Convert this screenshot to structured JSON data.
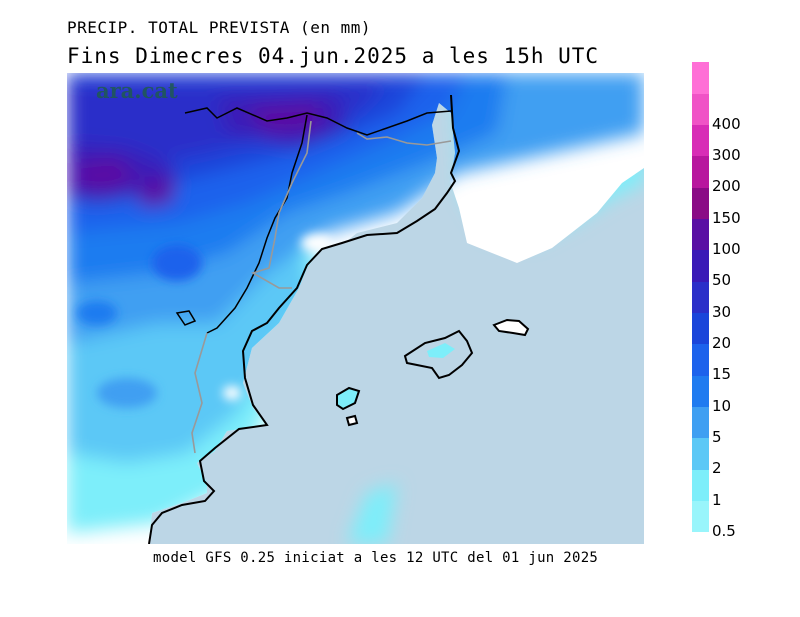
{
  "header": {
    "title_line1": "PRECIP. TOTAL PREVISTA (en mm)",
    "title_line2": "Fins Dimecres  04.jun.2025  a les  15h  UTC"
  },
  "watermark": "ara.cat",
  "footer": "model GFS 0.25 iniciat a les 12 UTC del 01 jun 2025",
  "legend": {
    "items": [
      {
        "label": "0.5",
        "color": "#99f5fb"
      },
      {
        "label": "1",
        "color": "#7deefa"
      },
      {
        "label": "2",
        "color": "#5cc8f6"
      },
      {
        "label": "5",
        "color": "#3f9ff2"
      },
      {
        "label": "10",
        "color": "#1f7bf0"
      },
      {
        "label": "15",
        "color": "#1c62ec"
      },
      {
        "label": "20",
        "color": "#1a45da"
      },
      {
        "label": "30",
        "color": "#2b2fc9"
      },
      {
        "label": "50",
        "color": "#3a1ab7"
      },
      {
        "label": "100",
        "color": "#5a0fa4"
      },
      {
        "label": "150",
        "color": "#8a0b86"
      },
      {
        "label": "200",
        "color": "#b8169e"
      },
      {
        "label": "300",
        "color": "#d82cb6"
      },
      {
        "label": "400",
        "color": "#f053c6"
      },
      {
        "label": "",
        "color": "#ff6fd6"
      }
    ]
  },
  "colors": {
    "sea": "#bcd6e6",
    "dry_land": "#ffffff",
    "coast": "#000000",
    "border": "#999999"
  }
}
